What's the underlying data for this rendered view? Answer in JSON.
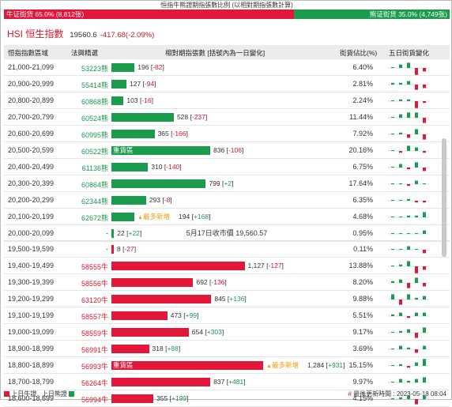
{
  "title": "恒指牛熊證期指張數比例 (以相對期指張數計算)",
  "ratio_bar": {
    "bull_label": "牛证街货 65.0% (8,812张)",
    "bear_label": "熊证街货 35.0% (4,749张)",
    "bull_fraction": 0.65,
    "bull_color": "#e3173a",
    "bear_color": "#1b9c4c"
  },
  "index": {
    "name": "HSI 恒生指數",
    "price": "19560.6",
    "change": "-417.68(-2.09%)"
  },
  "columns": {
    "range": "恒指指數區域",
    "code": "法興精選",
    "qty": "相對期指張數 [括號內為一日變化]",
    "pct": "街貨佔比(%)",
    "spark": "五日街貨變化"
  },
  "labels": {
    "heavy": "重貨區",
    "newest": "最多新增",
    "newest_icon": "up-triangle-icon"
  },
  "bear_rows": [
    {
      "range": "21,000-21,099",
      "code": "53223熊",
      "qty": "196",
      "delta": "-82",
      "qty_value": 196,
      "pct": "6.40%",
      "spark": [
        0,
        2,
        3,
        -4,
        -2
      ]
    },
    {
      "range": "20,900-20,999",
      "code": "55414熊",
      "qty": "127",
      "delta": "-94",
      "qty_value": 127,
      "pct": "2.81%",
      "spark": [
        1,
        1,
        2,
        -3,
        -2
      ]
    },
    {
      "range": "20,800-20,899",
      "code": "60868熊",
      "qty": "103",
      "delta": "-16",
      "qty_value": 103,
      "pct": "2.24%",
      "spark": [
        0,
        1,
        1,
        -4,
        -1
      ]
    },
    {
      "range": "20,700-20,799",
      "code": "60524熊",
      "qty": "528",
      "delta": "-237",
      "qty_value": 528,
      "pct": "11.44%",
      "spark": [
        0,
        2,
        3,
        3,
        -3
      ]
    },
    {
      "range": "20,600-20,699",
      "code": "60995熊",
      "qty": "365",
      "delta": "-166",
      "qty_value": 365,
      "pct": "7.92%",
      "spark": [
        0,
        1,
        -2,
        3,
        -3
      ]
    },
    {
      "range": "20,500-20,599",
      "code": "60522熊",
      "qty": "836",
      "delta": "-106",
      "qty_value": 836,
      "pct": "20.16%",
      "heavy": true,
      "spark": [
        0,
        -1,
        3,
        2,
        -1
      ]
    },
    {
      "range": "20,400-20,499",
      "code": "61136熊",
      "qty": "310",
      "delta": "-140",
      "qty_value": 310,
      "pct": "6.75%",
      "spark": [
        0,
        2,
        -1,
        3,
        -2
      ]
    },
    {
      "range": "20,300-20,399",
      "code": "60864熊",
      "qty": "799",
      "delta": "+2",
      "qty_value": 799,
      "pct": "17.64%",
      "spark": [
        0,
        0,
        -1,
        2,
        0
      ]
    },
    {
      "range": "20,200-20,299",
      "code": "62344熊",
      "qty": "293",
      "delta": "-8",
      "qty_value": 293,
      "pct": "6.35%",
      "spark": [
        0,
        0,
        1,
        -1,
        -1
      ]
    },
    {
      "range": "20,100-20,199",
      "code": "62672熊",
      "qty": "194",
      "delta": "+168",
      "qty_value": 194,
      "pct": "4.68%",
      "newest": true,
      "spark": [
        0,
        0,
        1,
        1,
        3
      ]
    },
    {
      "range": "20,000-20,099",
      "code": "-",
      "qty": "22",
      "delta": "+22",
      "qty_value": 22,
      "pct": "0.95%",
      "spark": [
        0,
        0,
        0,
        0,
        2
      ]
    }
  ],
  "close_text": "5月17日收市價 19,560.57",
  "bull_rows": [
    {
      "range": "19,500-19,599",
      "code": "-",
      "qty": "8",
      "delta": "-27",
      "qty_value": 8,
      "pct": "0.11%",
      "spark": [
        0,
        0,
        2,
        0,
        -2
      ]
    },
    {
      "range": "19,400-19,499",
      "code": "58555牛",
      "qty": "1,127",
      "delta": "-127",
      "qty_value": 1127,
      "pct": "13.88%",
      "spark": [
        0,
        1,
        3,
        -4,
        -2
      ]
    },
    {
      "range": "19,300-19,399",
      "code": "58556牛",
      "qty": "692",
      "delta": "-136",
      "qty_value": 692,
      "pct": "8.20%",
      "spark": [
        1,
        2,
        -3,
        3,
        -2
      ]
    },
    {
      "range": "19,200-19,299",
      "code": "63120牛",
      "qty": "845",
      "delta": "+136",
      "qty_value": 845,
      "pct": "9.88%",
      "spark": [
        3,
        -3,
        3,
        1,
        2
      ]
    },
    {
      "range": "19,100-19,199",
      "code": "58557牛",
      "qty": "473",
      "delta": "+99",
      "qty_value": 473,
      "pct": "5.51%",
      "spark": [
        1,
        2,
        -1,
        2,
        2
      ]
    },
    {
      "range": "19,000-19,099",
      "code": "58559牛",
      "qty": "654",
      "delta": "+303",
      "qty_value": 654,
      "pct": "9.17%",
      "spark": [
        0,
        1,
        2,
        -3,
        3
      ]
    },
    {
      "range": "18,900-18,999",
      "code": "56991牛",
      "qty": "318",
      "delta": "+88",
      "qty_value": 318,
      "pct": "3.69%",
      "spark": [
        0,
        2,
        1,
        -2,
        2
      ]
    },
    {
      "range": "18,800-18,899",
      "code": "56993牛",
      "qty": "1,284",
      "delta": "+931",
      "qty_value": 1284,
      "pct": "15.15%",
      "heavy": true,
      "newest": true,
      "spark": [
        0,
        1,
        -1,
        2,
        4
      ]
    },
    {
      "range": "18,700-18,799",
      "code": "56264牛",
      "qty": "837",
      "delta": "+481",
      "qty_value": 837,
      "pct": "9.97%",
      "spark": [
        0,
        2,
        1,
        2,
        3
      ]
    },
    {
      "range": "18,600-18,699",
      "code": "56994牛",
      "qty": "355",
      "delta": "+199",
      "qty_value": 355,
      "pct": "4.15%",
      "spark": [
        0,
        1,
        2,
        -3,
        2
      ]
    }
  ],
  "legend": {
    "bull": "上日牛證",
    "bear": "上日熊證",
    "updated": "最後更新時間 : 2023-05-18 08:04"
  }
}
